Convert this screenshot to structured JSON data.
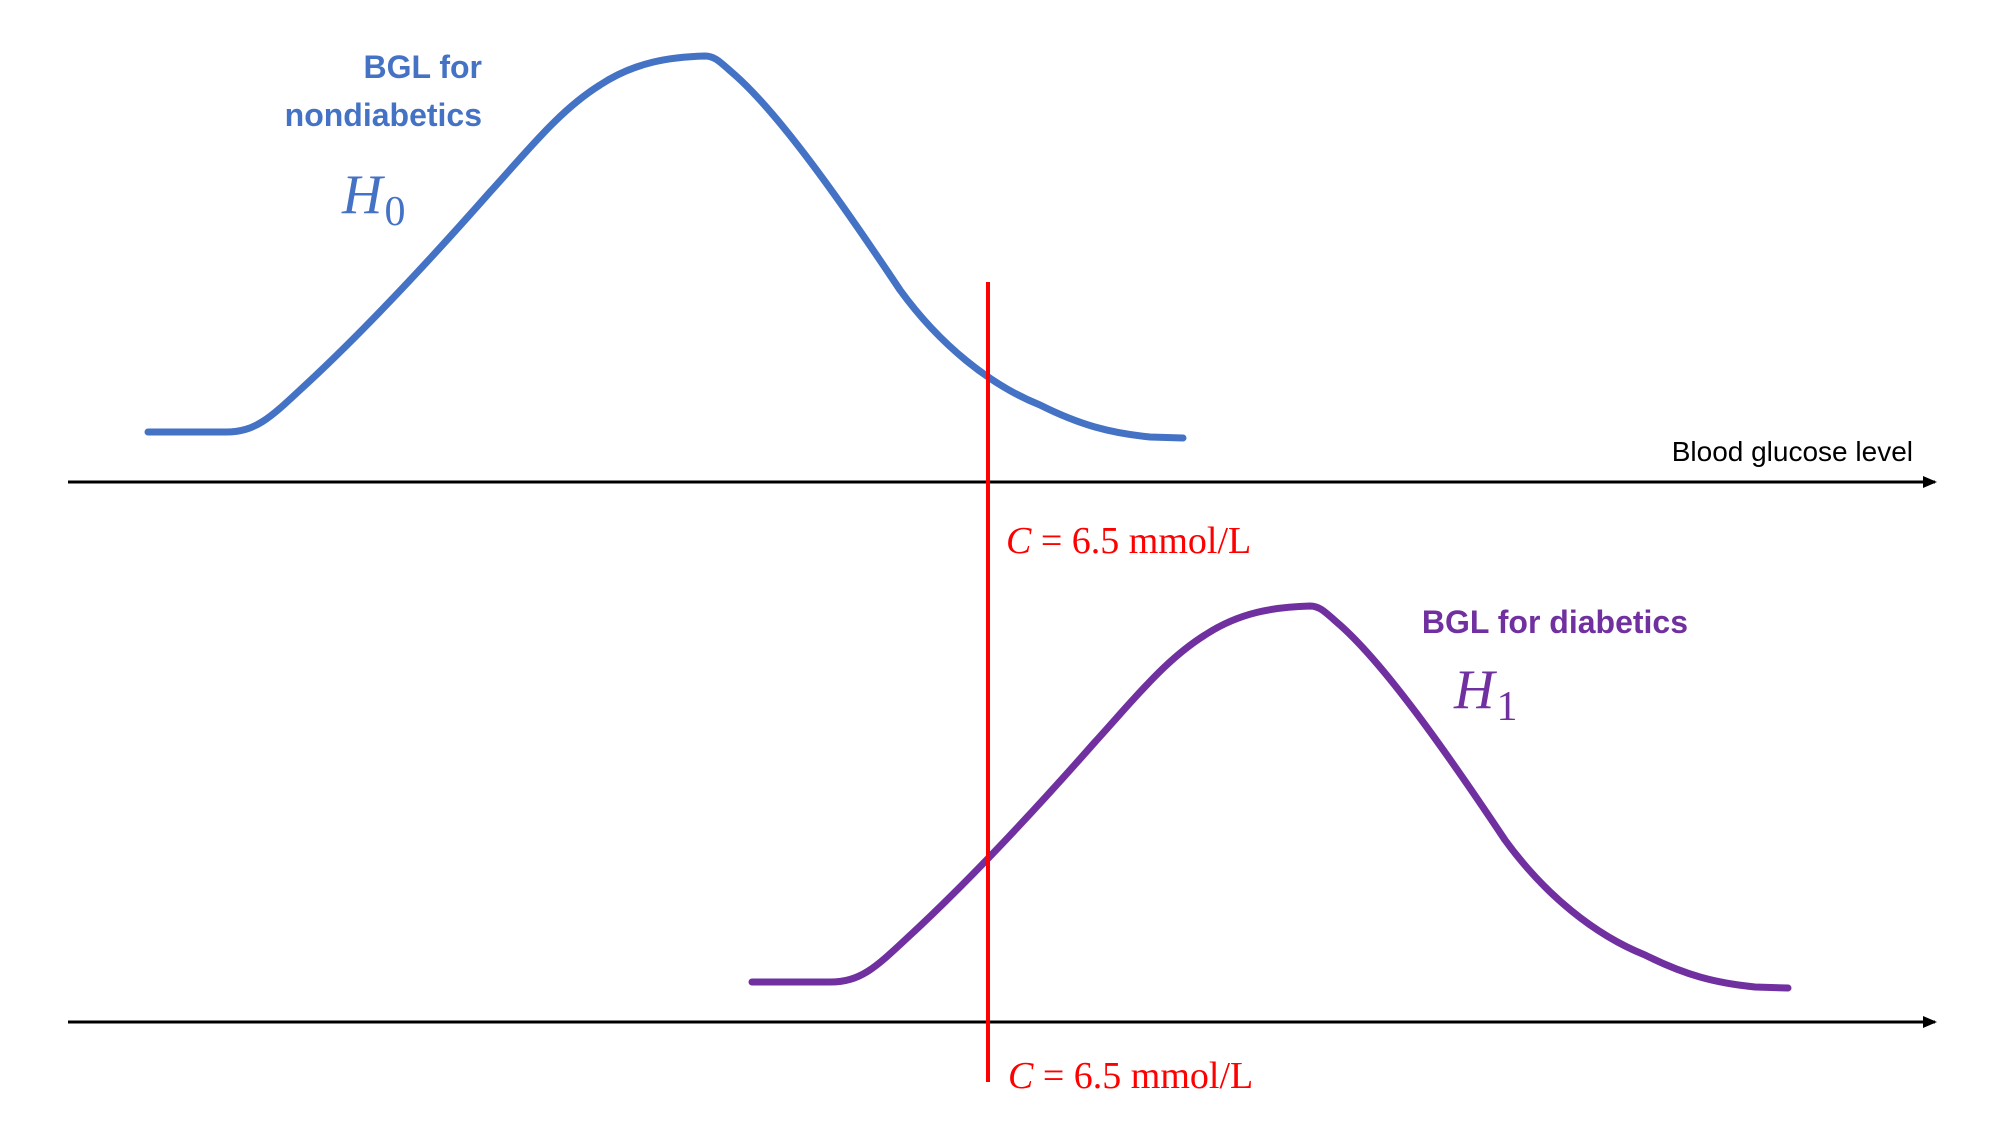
{
  "colors": {
    "h0": "#4472C4",
    "h1": "#7030A0",
    "threshold": "#FF0000",
    "axis": "#000000"
  },
  "top_panel": {
    "curve_label_line1": "BGL for",
    "curve_label_line2": "nondiabetics",
    "hypothesis_letter": "H",
    "hypothesis_sub": "0",
    "axis_label": "Blood glucose level"
  },
  "bottom_panel": {
    "curve_label": "BGL for diabetics",
    "hypothesis_letter": "H",
    "hypothesis_sub": "1"
  },
  "threshold": {
    "symbol": "C",
    "eq": " = 6.5 mmol/L"
  }
}
